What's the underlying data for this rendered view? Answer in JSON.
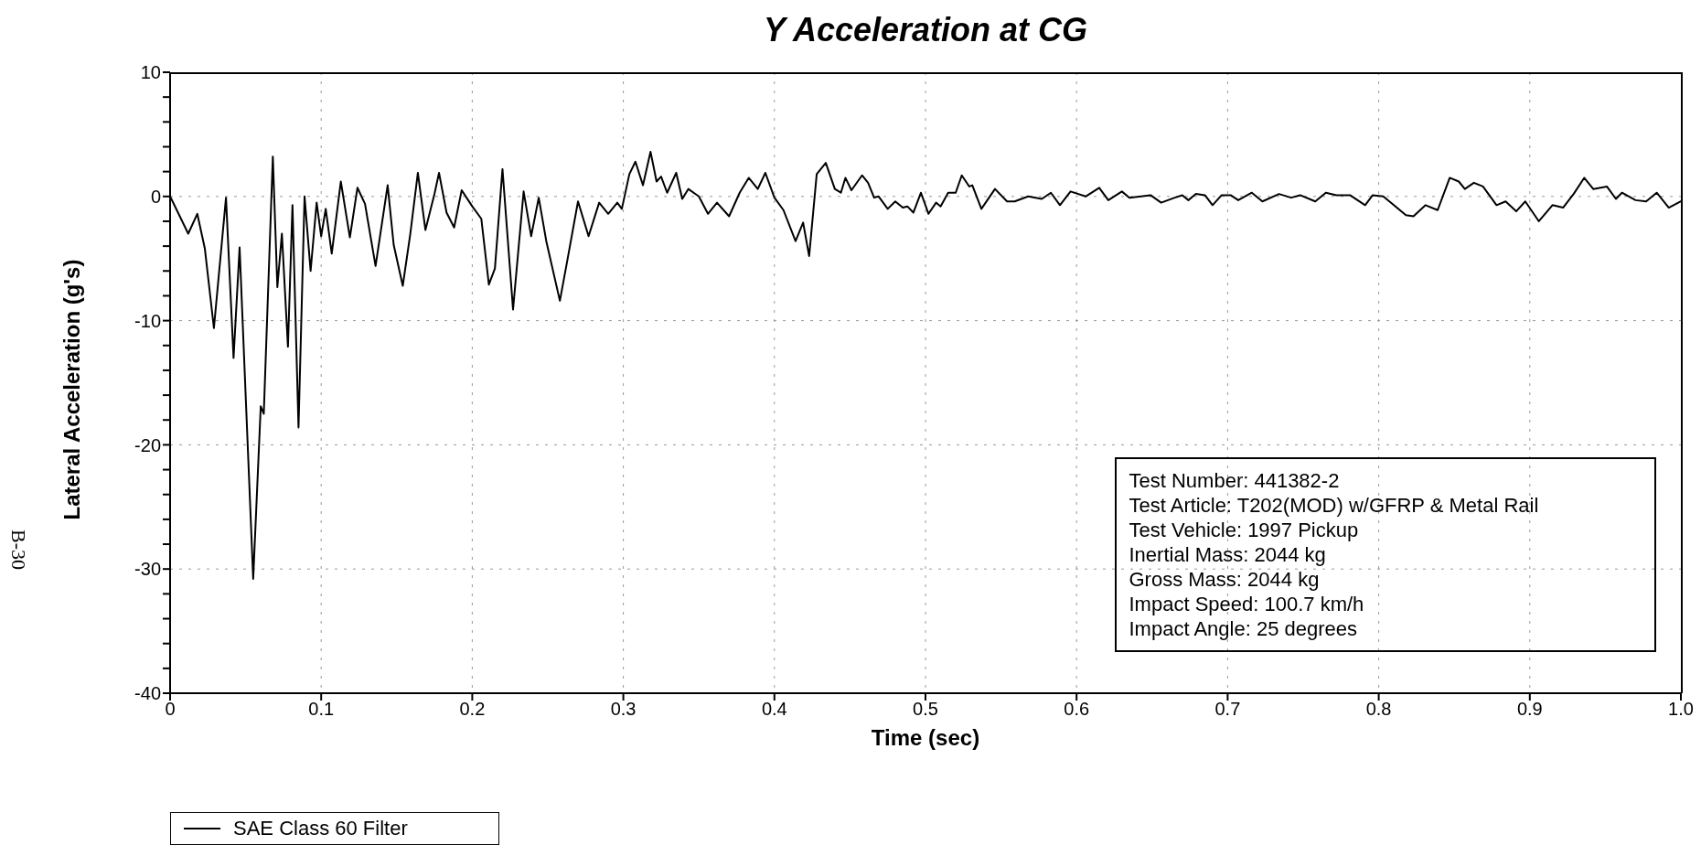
{
  "chart_data": {
    "type": "line",
    "title": "Y Acceleration at CG",
    "xlabel": "Time (sec)",
    "ylabel": "Lateral Acceleration (g's)",
    "x": [
      0,
      0.012,
      0.018,
      0.023,
      0.029,
      0.037,
      0.042,
      0.046,
      0.055,
      0.06,
      0.062,
      0.068,
      0.071,
      0.074,
      0.078,
      0.081,
      0.085,
      0.089,
      0.093,
      0.097,
      0.1,
      0.103,
      0.107,
      0.113,
      0.119,
      0.124,
      0.129,
      0.136,
      0.144,
      0.148,
      0.154,
      0.159,
      0.164,
      0.169,
      0.175,
      0.178,
      0.183,
      0.188,
      0.193,
      0.2,
      0.206,
      0.211,
      0.215,
      0.22,
      0.227,
      0.234,
      0.239,
      0.244,
      0.249,
      0.258,
      0.263,
      0.27,
      0.277,
      0.284,
      0.29,
      0.296,
      0.299,
      0.304,
      0.308,
      0.313,
      0.318,
      0.322,
      0.325,
      0.329,
      0.335,
      0.339,
      0.343,
      0.35,
      0.356,
      0.362,
      0.37,
      0.377,
      0.383,
      0.389,
      0.394,
      0.4,
      0.406,
      0.414,
      0.419,
      0.423,
      0.428,
      0.434,
      0.44,
      0.444,
      0.447,
      0.451,
      0.458,
      0.462,
      0.466,
      0.469,
      0.475,
      0.48,
      0.485,
      0.488,
      0.492,
      0.497,
      0.502,
      0.507,
      0.51,
      0.515,
      0.52,
      0.524,
      0.529,
      0.531,
      0.537,
      0.546,
      0.554,
      0.559,
      0.568,
      0.577,
      0.583,
      0.589,
      0.596,
      0.606,
      0.615,
      0.621,
      0.63,
      0.635,
      0.649,
      0.656,
      0.665,
      0.67,
      0.674,
      0.679,
      0.685,
      0.69,
      0.696,
      0.702,
      0.707,
      0.716,
      0.723,
      0.734,
      0.742,
      0.748,
      0.758,
      0.765,
      0.772,
      0.781,
      0.791,
      0.796,
      0.803,
      0.81,
      0.818,
      0.823,
      0.831,
      0.839,
      0.847,
      0.853,
      0.857,
      0.863,
      0.869,
      0.878,
      0.884,
      0.891,
      0.897,
      0.906,
      0.915,
      0.922,
      0.929,
      0.936,
      0.942,
      0.951,
      0.957,
      0.961,
      0.97,
      0.977,
      0.984,
      0.992,
      1.0
    ],
    "series": [
      {
        "name": "SAE Class 60 Filter",
        "color": "#000000",
        "values": [
          0,
          -3.0,
          -1.4,
          -4.2,
          -10.6,
          -0.1,
          -13.0,
          -4.1,
          -30.8,
          -16.9,
          -17.5,
          3.2,
          -7.3,
          -3.0,
          -12.1,
          -0.7,
          -18.6,
          0,
          -6.0,
          -0.5,
          -3.2,
          -1.0,
          -4.6,
          1.2,
          -3.3,
          0.7,
          -0.6,
          -5.6,
          0.9,
          -3.9,
          -7.2,
          -3.0,
          1.9,
          -2.7,
          0.2,
          1.9,
          -1.3,
          -2.5,
          0.5,
          -0.8,
          -1.8,
          -7.1,
          -5.8,
          2.2,
          -9.1,
          0.4,
          -3.2,
          -0.1,
          -3.6,
          -8.4,
          -5.1,
          -0.4,
          -3.2,
          -0.5,
          -1.4,
          -0.5,
          -1.0,
          1.8,
          2.8,
          0.9,
          3.6,
          1.2,
          1.6,
          0.3,
          1.9,
          -0.2,
          0.6,
          0,
          -1.4,
          -0.5,
          -1.6,
          0.3,
          1.5,
          0.6,
          1.9,
          -0.1,
          -1.1,
          -3.6,
          -2.1,
          -4.8,
          1.8,
          2.7,
          0.6,
          0.3,
          1.5,
          0.5,
          1.7,
          1.1,
          -0.1,
          0,
          -1.0,
          -0.4,
          -0.9,
          -0.8,
          -1.3,
          0.3,
          -1.4,
          -0.5,
          -0.8,
          0.3,
          0.3,
          1.7,
          0.8,
          0.9,
          -1.0,
          0.6,
          -0.4,
          -0.4,
          0,
          -0.2,
          0.3,
          -0.7,
          0.4,
          0,
          0.7,
          -0.3,
          0.4,
          -0.1,
          0.1,
          -0.5,
          -0.1,
          0.1,
          -0.3,
          0.2,
          0.1,
          -0.7,
          0.1,
          0.1,
          -0.3,
          0.3,
          -0.4,
          0.2,
          -0.1,
          0.1,
          -0.4,
          0.3,
          0.1,
          0.1,
          -0.7,
          0.1,
          0,
          -0.7,
          -1.5,
          -1.6,
          -0.7,
          -1.1,
          1.5,
          1.2,
          0.6,
          1.1,
          0.8,
          -0.7,
          -0.4,
          -1.2,
          -0.4,
          -2.0,
          -0.7,
          -0.9,
          0.2,
          1.5,
          0.6,
          0.8,
          -0.2,
          0.3,
          -0.3,
          -0.4,
          0.3,
          -0.9,
          -0.4
        ]
      }
    ],
    "xlim": [
      0,
      1
    ],
    "xticks": [
      0,
      0.1,
      0.2,
      0.3,
      0.4,
      0.5,
      0.6,
      0.7,
      0.8,
      0.9,
      {
        "value": 1,
        "label": "1.0"
      }
    ],
    "ylim": [
      -40,
      10
    ],
    "yticks": [
      -40,
      {
        "value": -38,
        "label": null
      },
      {
        "value": -36,
        "label": null
      },
      {
        "value": -34,
        "label": null
      },
      {
        "value": -32,
        "label": null
      },
      -30,
      {
        "value": -28,
        "label": null
      },
      {
        "value": -26,
        "label": null
      },
      {
        "value": -24,
        "label": null
      },
      {
        "value": -22,
        "label": null
      },
      -20,
      {
        "value": -18,
        "label": null
      },
      {
        "value": -16,
        "label": null
      },
      {
        "value": -14,
        "label": null
      },
      {
        "value": -12,
        "label": null
      },
      -10,
      {
        "value": -8,
        "label": null
      },
      {
        "value": -6,
        "label": null
      },
      {
        "value": -4,
        "label": null
      },
      {
        "value": -2,
        "label": null
      },
      0,
      {
        "value": 2,
        "label": null
      },
      {
        "value": 4,
        "label": null
      },
      {
        "value": 6,
        "label": null
      },
      {
        "value": 8,
        "label": null
      },
      10
    ],
    "grid": true,
    "legend": "bottom left",
    "marker": "none",
    "line_style": "solid",
    "annotations": [
      "Test Number: 441382-2",
      "Test Article: T202(MOD) w/GFRP & Metal Rail",
      "Test Vehicle: 1997 Pickup",
      "Inertial Mass: 2044 kg",
      "Gross Mass: 2044 kg",
      "Impact Speed: 100.7 km/h",
      "Impact Angle: 25 degrees",
      "B-30"
    ]
  }
}
